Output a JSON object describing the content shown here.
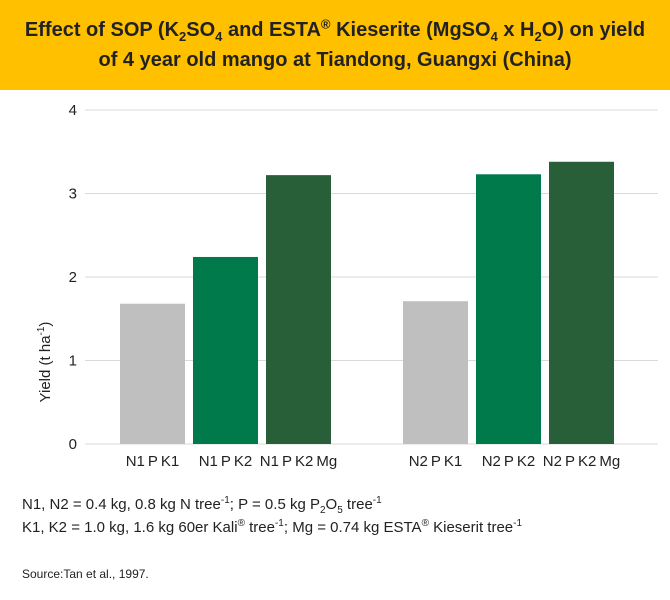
{
  "header": {
    "title_line1": {
      "parts": [
        "Effect of SOP (K",
        "2",
        "SO",
        "4",
        " and ESTA",
        "®",
        " Kieserite (MgSO",
        "4",
        " x H",
        "2",
        "O) on yield"
      ]
    },
    "title_line2": "of 4 year old mango at Tiandong, Guangxi (China)"
  },
  "colors": {
    "banner": "#ffc000",
    "series": [
      "#bfbfbf",
      "#007a4a",
      "#285e38"
    ],
    "axis": "#d9d9d9"
  },
  "chart_data": {
    "type": "bar",
    "title": "Effect of SOP (K2SO4 and ESTA® Kieserite (MgSO4 x H2O) on yield of 4 year old mango at Tiandong, Guangxi (China)",
    "ylabel": "Yield (t ha-1)",
    "ylabel_parts": {
      "main": "Yield (t ha",
      "sup": "-1",
      "end": ")"
    },
    "ylim": [
      0,
      4
    ],
    "yticks": [
      0,
      1,
      2,
      3,
      4
    ],
    "grid": true,
    "groups": [
      {
        "bars": [
          {
            "label": "N1PK1",
            "label_parts": [
              "N1",
              "P",
              "K1"
            ],
            "value": 1.68,
            "color": "#bfbfbf"
          },
          {
            "label": "N1PK2",
            "label_parts": [
              "N1",
              "P",
              "K2"
            ],
            "value": 2.24,
            "color": "#007a4a"
          },
          {
            "label": "N1PK2Mg",
            "label_parts": [
              "N1",
              "P",
              "K2",
              "Mg"
            ],
            "value": 3.22,
            "color": "#285e38"
          }
        ]
      },
      {
        "bars": [
          {
            "label": "N2PK1",
            "label_parts": [
              "N2",
              "P",
              "K1"
            ],
            "value": 1.71,
            "color": "#bfbfbf"
          },
          {
            "label": "N2PK2",
            "label_parts": [
              "N2",
              "P",
              "K2"
            ],
            "value": 3.23,
            "color": "#007a4a"
          },
          {
            "label": "N2PK2Mg",
            "label_parts": [
              "N2",
              "P",
              "K2",
              "Mg"
            ],
            "value": 3.38,
            "color": "#285e38"
          }
        ]
      }
    ]
  },
  "notes": {
    "line1": {
      "parts": [
        "N1, N2 = 0.4 kg, 0.8 kg N tree",
        "-1",
        "; P = 0.5 kg P",
        "2",
        "O",
        "5",
        " tree",
        "-1"
      ]
    },
    "line2": {
      "parts": [
        "K1, K2 = 1.0 kg, 1.6 kg 60er Kali",
        "®",
        " tree",
        "-1",
        "; Mg = 0.74 kg ESTA",
        "®",
        " Kieserit tree",
        "-1"
      ]
    }
  },
  "source": "Source:Tan et al., 1997."
}
